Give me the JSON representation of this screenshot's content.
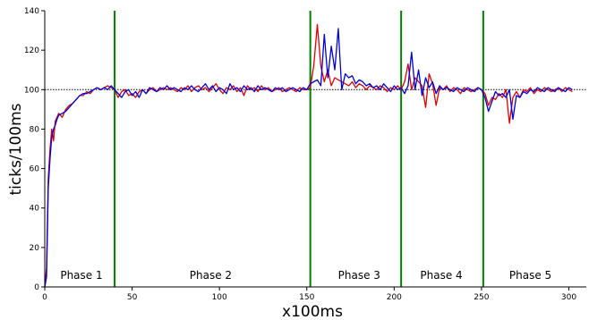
{
  "chart_data": {
    "type": "line",
    "title": "",
    "xlabel": "x100ms",
    "ylabel": "ticks/100ms",
    "xlim": [
      0,
      310
    ],
    "ylim": [
      0,
      140
    ],
    "xticks": [
      0,
      50,
      100,
      150,
      200,
      250,
      300
    ],
    "yticks": [
      0,
      20,
      40,
      60,
      80,
      100,
      120,
      140
    ],
    "reference_line": {
      "y": 100,
      "style": "dotted",
      "color": "#000000"
    },
    "phase_boundaries": [
      40,
      152,
      204,
      251
    ],
    "phase_boundary_color": "#008000",
    "phases": [
      {
        "label": "Phase 1",
        "x": 21
      },
      {
        "label": "Phase 2",
        "x": 95
      },
      {
        "label": "Phase 3",
        "x": 180
      },
      {
        "label": "Phase 4",
        "x": 227
      },
      {
        "label": "Phase 5",
        "x": 278
      }
    ],
    "series": [
      {
        "color": "#e00000",
        "points": [
          [
            0,
            0
          ],
          [
            1,
            10
          ],
          [
            2,
            55
          ],
          [
            3,
            70
          ],
          [
            4,
            80
          ],
          [
            5,
            74
          ],
          [
            6,
            84
          ],
          [
            7,
            86
          ],
          [
            8,
            88
          ],
          [
            10,
            86
          ],
          [
            12,
            90
          ],
          [
            14,
            92
          ],
          [
            16,
            93
          ],
          [
            18,
            95
          ],
          [
            20,
            97
          ],
          [
            22,
            97
          ],
          [
            24,
            99
          ],
          [
            26,
            98
          ],
          [
            28,
            100
          ],
          [
            30,
            101
          ],
          [
            32,
            100
          ],
          [
            34,
            101
          ],
          [
            36,
            102
          ],
          [
            38,
            101
          ],
          [
            40,
            100
          ],
          [
            42,
            96
          ],
          [
            44,
            99
          ],
          [
            46,
            100
          ],
          [
            48,
            97
          ],
          [
            50,
            98
          ],
          [
            52,
            96
          ],
          [
            54,
            99
          ],
          [
            56,
            100
          ],
          [
            58,
            98
          ],
          [
            60,
            100
          ],
          [
            62,
            101
          ],
          [
            64,
            99
          ],
          [
            66,
            100
          ],
          [
            68,
            101
          ],
          [
            70,
            100
          ],
          [
            72,
            101
          ],
          [
            74,
            100
          ],
          [
            76,
            99
          ],
          [
            78,
            101
          ],
          [
            80,
            100
          ],
          [
            82,
            102
          ],
          [
            84,
            99
          ],
          [
            86,
            101
          ],
          [
            88,
            102
          ],
          [
            90,
            100
          ],
          [
            92,
            101
          ],
          [
            94,
            99
          ],
          [
            96,
            101
          ],
          [
            98,
            103
          ],
          [
            100,
            100
          ],
          [
            102,
            98
          ],
          [
            104,
            101
          ],
          [
            106,
            100
          ],
          [
            108,
            102
          ],
          [
            110,
            99
          ],
          [
            112,
            101
          ],
          [
            114,
            97
          ],
          [
            116,
            102
          ],
          [
            118,
            100
          ],
          [
            120,
            101
          ],
          [
            122,
            99
          ],
          [
            124,
            102
          ],
          [
            126,
            100
          ],
          [
            128,
            101
          ],
          [
            130,
            99
          ],
          [
            132,
            100
          ],
          [
            134,
            101
          ],
          [
            136,
            99
          ],
          [
            138,
            100
          ],
          [
            140,
            101
          ],
          [
            142,
            100
          ],
          [
            144,
            99
          ],
          [
            146,
            101
          ],
          [
            148,
            100
          ],
          [
            150,
            100
          ],
          [
            152,
            101
          ],
          [
            154,
            112
          ],
          [
            156,
            133
          ],
          [
            158,
            112
          ],
          [
            160,
            104
          ],
          [
            162,
            110
          ],
          [
            164,
            102
          ],
          [
            166,
            106
          ],
          [
            168,
            105
          ],
          [
            170,
            104
          ],
          [
            172,
            103
          ],
          [
            174,
            102
          ],
          [
            176,
            104
          ],
          [
            178,
            101
          ],
          [
            180,
            103
          ],
          [
            182,
            102
          ],
          [
            184,
            100
          ],
          [
            186,
            102
          ],
          [
            188,
            101
          ],
          [
            190,
            100
          ],
          [
            192,
            102
          ],
          [
            194,
            101
          ],
          [
            196,
            99
          ],
          [
            198,
            101
          ],
          [
            200,
            100
          ],
          [
            202,
            102
          ],
          [
            204,
            100
          ],
          [
            206,
            104
          ],
          [
            208,
            113
          ],
          [
            210,
            100
          ],
          [
            212,
            106
          ],
          [
            214,
            104
          ],
          [
            216,
            102
          ],
          [
            218,
            91
          ],
          [
            220,
            108
          ],
          [
            222,
            103
          ],
          [
            224,
            92
          ],
          [
            226,
            101
          ],
          [
            228,
            100
          ],
          [
            230,
            102
          ],
          [
            232,
            99
          ],
          [
            234,
            101
          ],
          [
            236,
            100
          ],
          [
            238,
            98
          ],
          [
            240,
            101
          ],
          [
            242,
            100
          ],
          [
            244,
            99
          ],
          [
            246,
            100
          ],
          [
            248,
            101
          ],
          [
            250,
            100
          ],
          [
            252,
            98
          ],
          [
            254,
            92
          ],
          [
            256,
            96
          ],
          [
            258,
            95
          ],
          [
            260,
            98
          ],
          [
            262,
            96
          ],
          [
            264,
            100
          ],
          [
            266,
            83
          ],
          [
            268,
            96
          ],
          [
            270,
            99
          ],
          [
            272,
            96
          ],
          [
            274,
            100
          ],
          [
            276,
            99
          ],
          [
            278,
            101
          ],
          [
            280,
            98
          ],
          [
            282,
            100
          ],
          [
            284,
            99
          ],
          [
            286,
            101
          ],
          [
            288,
            100
          ],
          [
            290,
            99
          ],
          [
            292,
            100
          ],
          [
            294,
            101
          ],
          [
            296,
            99
          ],
          [
            298,
            101
          ],
          [
            300,
            100
          ],
          [
            302,
            99
          ]
        ]
      },
      {
        "color": "#0000e0",
        "points": [
          [
            0,
            0
          ],
          [
            1,
            5
          ],
          [
            2,
            50
          ],
          [
            3,
            65
          ],
          [
            4,
            76
          ],
          [
            5,
            80
          ],
          [
            6,
            82
          ],
          [
            7,
            85
          ],
          [
            8,
            87
          ],
          [
            10,
            88
          ],
          [
            12,
            89
          ],
          [
            14,
            91
          ],
          [
            16,
            93
          ],
          [
            18,
            95
          ],
          [
            20,
            97
          ],
          [
            22,
            98
          ],
          [
            24,
            98
          ],
          [
            26,
            99
          ],
          [
            28,
            100
          ],
          [
            30,
            101
          ],
          [
            32,
            100
          ],
          [
            34,
            101
          ],
          [
            36,
            100
          ],
          [
            38,
            102
          ],
          [
            40,
            100
          ],
          [
            42,
            98
          ],
          [
            44,
            96
          ],
          [
            46,
            99
          ],
          [
            48,
            100
          ],
          [
            50,
            97
          ],
          [
            52,
            99
          ],
          [
            54,
            96
          ],
          [
            56,
            100
          ],
          [
            58,
            98
          ],
          [
            60,
            101
          ],
          [
            62,
            100
          ],
          [
            64,
            99
          ],
          [
            66,
            101
          ],
          [
            68,
            100
          ],
          [
            70,
            102
          ],
          [
            72,
            100
          ],
          [
            74,
            101
          ],
          [
            76,
            100
          ],
          [
            78,
            99
          ],
          [
            80,
            101
          ],
          [
            82,
            100
          ],
          [
            84,
            102
          ],
          [
            86,
            100
          ],
          [
            88,
            99
          ],
          [
            90,
            101
          ],
          [
            92,
            103
          ],
          [
            94,
            100
          ],
          [
            96,
            102
          ],
          [
            98,
            99
          ],
          [
            100,
            101
          ],
          [
            102,
            100
          ],
          [
            104,
            98
          ],
          [
            106,
            103
          ],
          [
            108,
            100
          ],
          [
            110,
            101
          ],
          [
            112,
            99
          ],
          [
            114,
            102
          ],
          [
            116,
            100
          ],
          [
            118,
            101
          ],
          [
            120,
            99
          ],
          [
            122,
            102
          ],
          [
            124,
            100
          ],
          [
            126,
            101
          ],
          [
            128,
            100
          ],
          [
            130,
            99
          ],
          [
            132,
            101
          ],
          [
            134,
            100
          ],
          [
            136,
            101
          ],
          [
            138,
            99
          ],
          [
            140,
            100
          ],
          [
            142,
            101
          ],
          [
            144,
            100
          ],
          [
            146,
            99
          ],
          [
            148,
            101
          ],
          [
            150,
            100
          ],
          [
            152,
            103
          ],
          [
            154,
            104
          ],
          [
            156,
            105
          ],
          [
            158,
            102
          ],
          [
            160,
            128
          ],
          [
            162,
            106
          ],
          [
            164,
            122
          ],
          [
            166,
            110
          ],
          [
            168,
            131
          ],
          [
            170,
            100
          ],
          [
            172,
            108
          ],
          [
            174,
            106
          ],
          [
            176,
            107
          ],
          [
            178,
            103
          ],
          [
            180,
            105
          ],
          [
            182,
            104
          ],
          [
            184,
            102
          ],
          [
            186,
            103
          ],
          [
            188,
            101
          ],
          [
            190,
            102
          ],
          [
            192,
            100
          ],
          [
            194,
            103
          ],
          [
            196,
            101
          ],
          [
            198,
            99
          ],
          [
            200,
            102
          ],
          [
            202,
            100
          ],
          [
            204,
            101
          ],
          [
            206,
            98
          ],
          [
            208,
            102
          ],
          [
            210,
            119
          ],
          [
            212,
            100
          ],
          [
            214,
            110
          ],
          [
            216,
            97
          ],
          [
            218,
            106
          ],
          [
            220,
            101
          ],
          [
            222,
            104
          ],
          [
            224,
            98
          ],
          [
            226,
            102
          ],
          [
            228,
            100
          ],
          [
            230,
            101
          ],
          [
            232,
            100
          ],
          [
            234,
            99
          ],
          [
            236,
            101
          ],
          [
            238,
            100
          ],
          [
            240,
            99
          ],
          [
            242,
            101
          ],
          [
            244,
            100
          ],
          [
            246,
            99
          ],
          [
            248,
            101
          ],
          [
            250,
            100
          ],
          [
            252,
            96
          ],
          [
            254,
            89
          ],
          [
            256,
            94
          ],
          [
            258,
            99
          ],
          [
            260,
            97
          ],
          [
            262,
            98
          ],
          [
            264,
            96
          ],
          [
            266,
            100
          ],
          [
            268,
            85
          ],
          [
            270,
            97
          ],
          [
            272,
            96
          ],
          [
            274,
            99
          ],
          [
            276,
            98
          ],
          [
            278,
            100
          ],
          [
            280,
            99
          ],
          [
            282,
            101
          ],
          [
            284,
            100
          ],
          [
            286,
            99
          ],
          [
            288,
            101
          ],
          [
            290,
            100
          ],
          [
            292,
            99
          ],
          [
            294,
            101
          ],
          [
            296,
            100
          ],
          [
            298,
            99
          ],
          [
            300,
            101
          ],
          [
            302,
            100
          ]
        ]
      }
    ]
  }
}
